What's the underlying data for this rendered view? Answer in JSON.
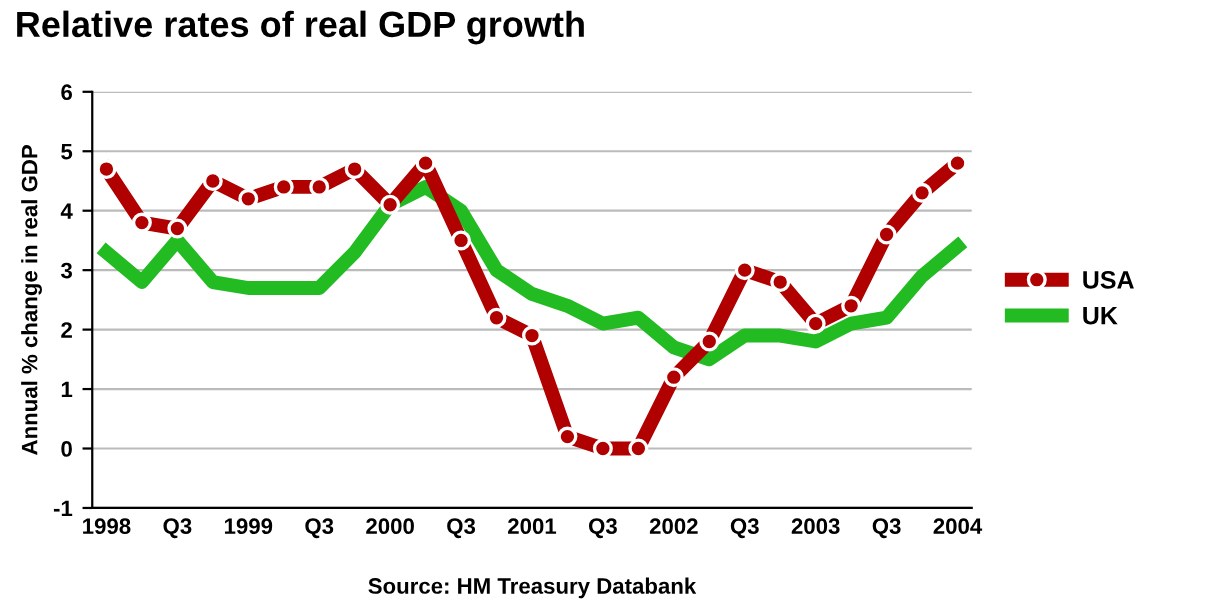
{
  "chart_data": {
    "type": "line",
    "title": "Relative rates of real GDP growth",
    "ylabel": "Annual % change in real GDP",
    "categories": [
      "1998",
      null,
      "Q3",
      null,
      "1999",
      null,
      "Q3",
      null,
      "2000",
      null,
      "Q3",
      null,
      "2001",
      null,
      "Q3",
      null,
      "2002",
      null,
      "Q3",
      null,
      "2003",
      null,
      "Q3",
      null,
      "2004"
    ],
    "series": [
      {
        "name": "USA",
        "color": "#b00000",
        "marker": "circle",
        "values": [
          4.7,
          3.8,
          3.7,
          4.5,
          4.2,
          4.4,
          4.4,
          4.7,
          4.1,
          4.8,
          3.5,
          2.2,
          1.9,
          0.2,
          0.0,
          0.0,
          1.2,
          1.8,
          3.0,
          2.8,
          2.1,
          2.4,
          3.6,
          4.3,
          4.8
        ]
      },
      {
        "name": "UK",
        "color": "#22bb22",
        "marker": "none",
        "values": [
          3.3,
          2.8,
          3.5,
          2.8,
          2.7,
          2.7,
          2.7,
          3.3,
          4.1,
          4.4,
          4.0,
          3.0,
          2.6,
          2.4,
          2.1,
          2.2,
          1.7,
          1.5,
          1.9,
          1.9,
          1.8,
          2.1,
          2.2,
          2.9,
          3.4
        ]
      }
    ],
    "ylim": [
      -1,
      6
    ],
    "yticks": [
      -1,
      0,
      1,
      2,
      3,
      4,
      5,
      6
    ],
    "grid": "y",
    "legend": "right",
    "annotations": [
      "Source: HM Treasury Databank"
    ]
  }
}
